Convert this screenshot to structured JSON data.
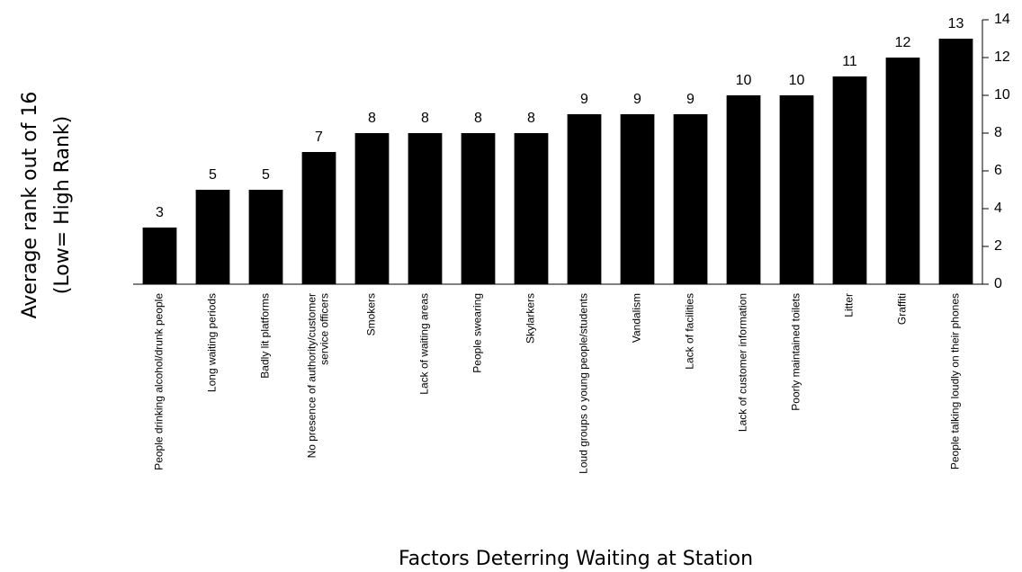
{
  "chart_data": {
    "type": "bar",
    "x_label": "Factors Deterring Waiting at Station",
    "y_label": [
      "Average rank out of 16",
      "(Low= High Rank)"
    ],
    "categories": [
      "People drinking alcohol/drunk people",
      "Long waiting periods",
      "Badly lit platforms",
      "No presence of authority/customer service officers",
      "Smokers",
      "Lack of waiting areas",
      "People swearing",
      "Skylarkers",
      "Loud groups o young people/students",
      "Vandalism",
      "Lack of facilities",
      "Lack of customer information",
      "Poorly maintained toilets",
      "Litter",
      "Graffiti",
      "People talking loudly on their phones"
    ],
    "values": [
      3,
      5,
      5,
      7,
      8,
      8,
      8,
      8,
      9,
      9,
      9,
      10,
      10,
      11,
      12,
      13
    ],
    "color": "#000000",
    "ylim": [
      0,
      14
    ],
    "yticks": [
      0,
      2,
      4,
      6,
      8,
      10,
      12,
      14
    ],
    "grid": false
  }
}
